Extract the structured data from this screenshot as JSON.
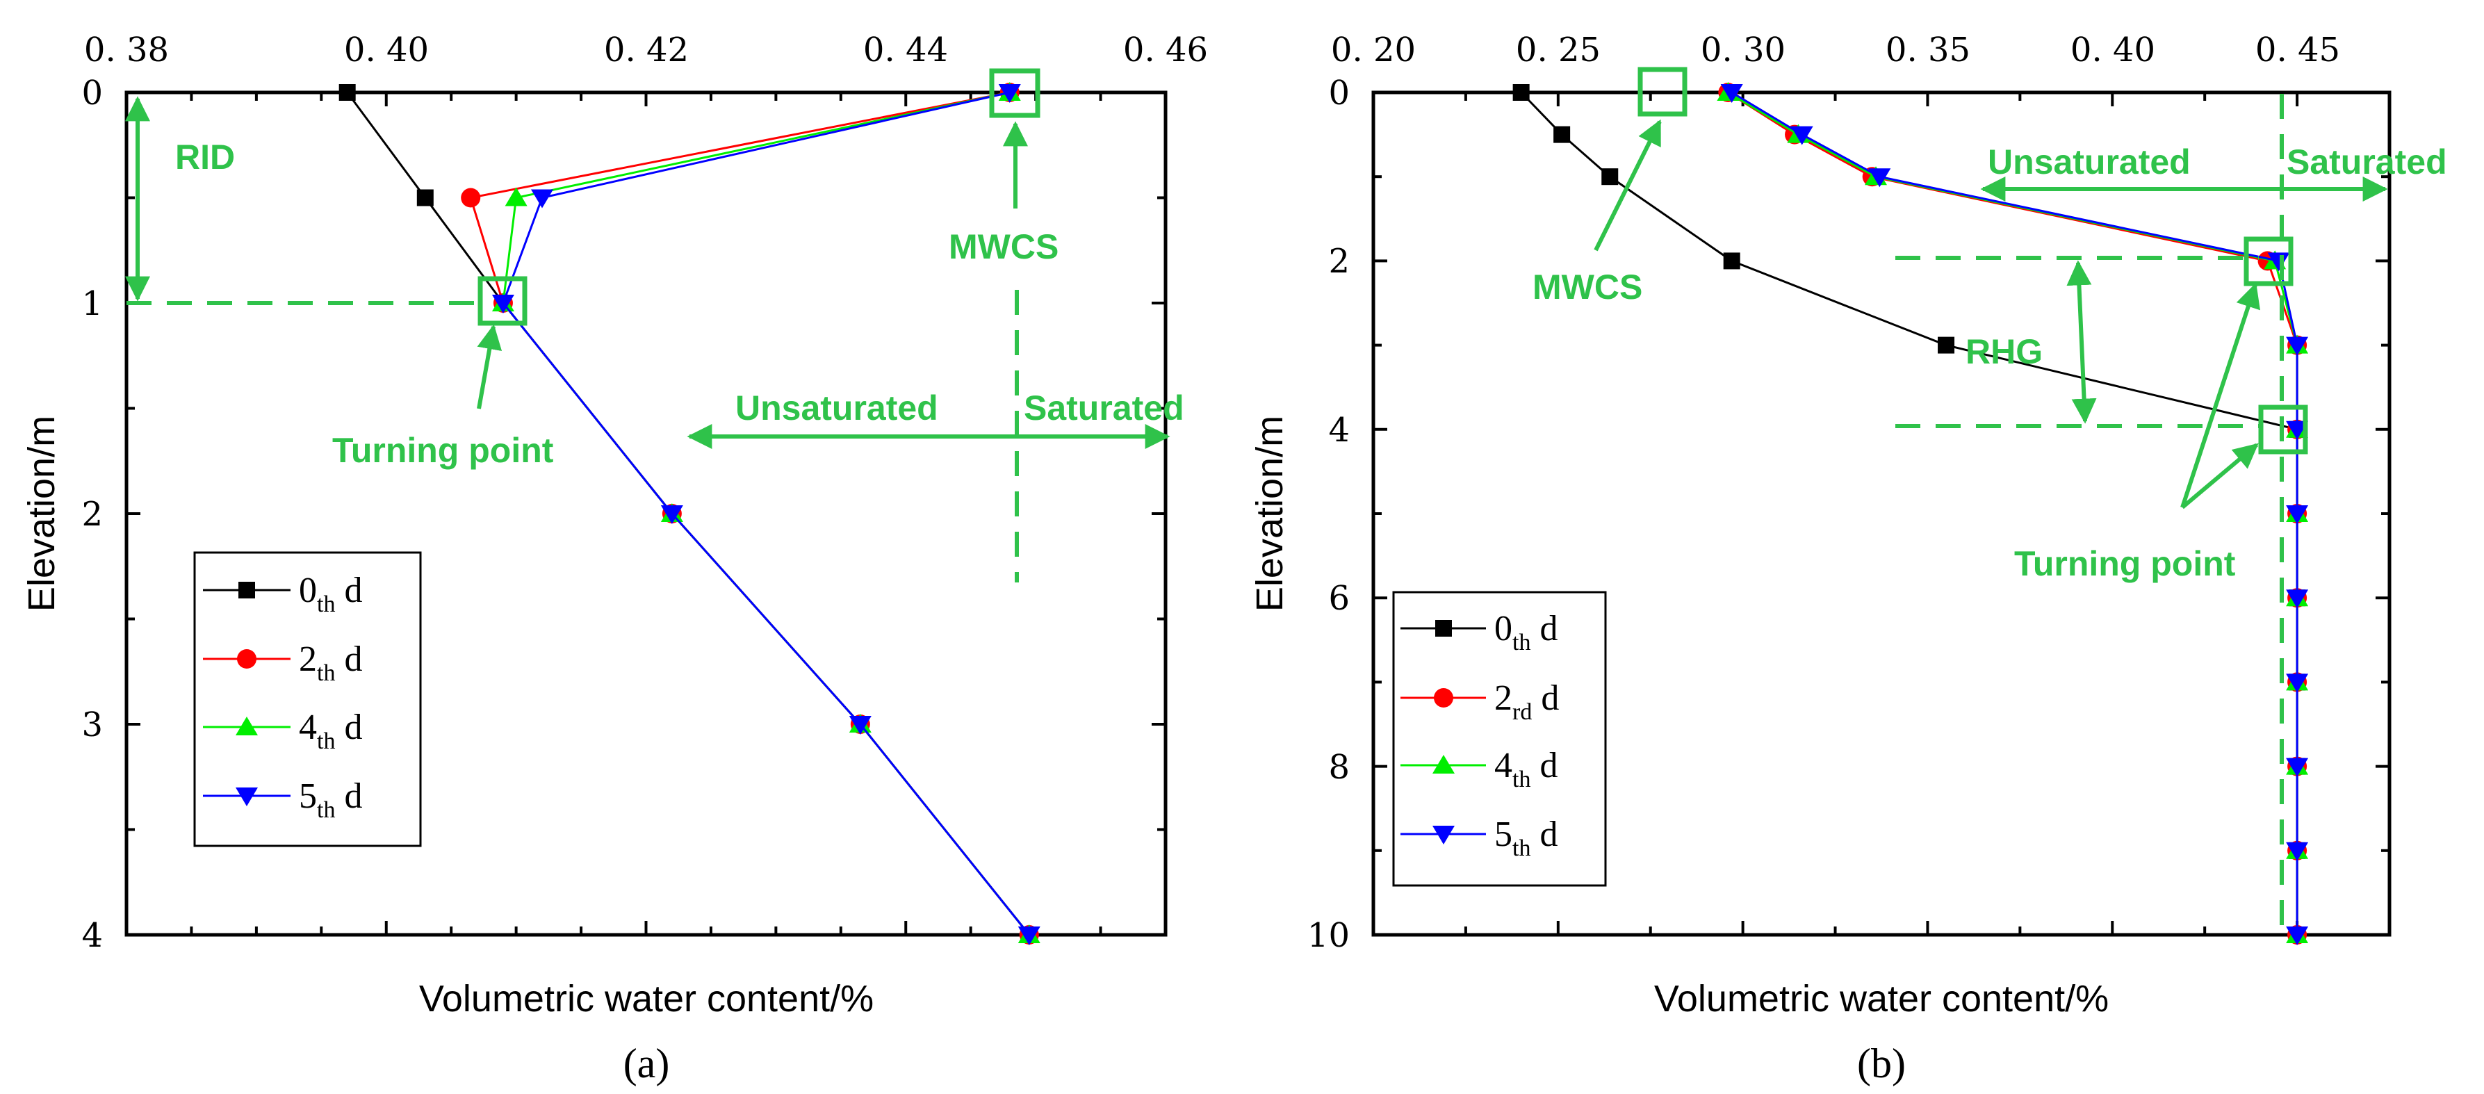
{
  "chart_data": [
    {
      "type": "line",
      "panel_label": "(a)",
      "xlabel": "Volumetric water content/%",
      "ylabel": "Elevation/m",
      "xlim": [
        0.38,
        0.46
      ],
      "ylim": [
        0,
        4
      ],
      "x_ticks": [
        "0. 38",
        "0. 40",
        "0. 42",
        "0. 44",
        "0. 46"
      ],
      "y_ticks": [
        "0",
        "1",
        "2",
        "3",
        "4"
      ],
      "series": [
        {
          "name": "0",
          "sub": "th",
          "unit": "d",
          "color": "#000000",
          "marker": "square",
          "x": [
            0.397,
            0.403,
            0.409,
            0.422,
            0.4365,
            0.4495
          ],
          "y": [
            0,
            0.5,
            1,
            2,
            3,
            4
          ]
        },
        {
          "name": "2",
          "sub": "th",
          "unit": "d",
          "color": "#ff0000",
          "marker": "circle",
          "x": [
            0.448,
            0.4065,
            0.409,
            0.422,
            0.4365,
            0.4495
          ],
          "y": [
            0,
            0.5,
            1,
            2,
            3,
            4
          ]
        },
        {
          "name": "4",
          "sub": "th",
          "unit": "d",
          "color": "#00ee00",
          "marker": "triangle-up",
          "x": [
            0.448,
            0.41,
            0.409,
            0.422,
            0.4365,
            0.4495
          ],
          "y": [
            0,
            0.5,
            1,
            2,
            3,
            4
          ]
        },
        {
          "name": "5",
          "sub": "th",
          "unit": "d",
          "color": "#0000ff",
          "marker": "triangle-down",
          "x": [
            0.448,
            0.412,
            0.409,
            0.422,
            0.4365,
            0.4495
          ],
          "y": [
            0,
            0.5,
            1,
            2,
            3,
            4
          ]
        }
      ],
      "annotations": [
        {
          "text": "RID"
        },
        {
          "text": "MWCS"
        },
        {
          "text": "Turning point"
        },
        {
          "text": "Unsaturated"
        },
        {
          "text": "Saturated"
        }
      ],
      "legend_position": "bottom-left"
    },
    {
      "type": "line",
      "panel_label": "(b)",
      "xlabel": "Volumetric water content/%",
      "ylabel": "Elevation/m",
      "xlim": [
        0.2,
        0.475
      ],
      "ylim": [
        0,
        10
      ],
      "x_ticks": [
        "0. 20",
        "0. 25",
        "0. 30",
        "0. 35",
        "0. 40",
        "0. 45"
      ],
      "y_ticks": [
        "0",
        "2",
        "4",
        "6",
        "8",
        "10"
      ],
      "series": [
        {
          "name": "0",
          "sub": "th",
          "unit": "d",
          "color": "#000000",
          "marker": "square",
          "x": [
            0.24,
            0.251,
            0.264,
            0.297,
            0.355,
            0.45,
            0.45,
            0.45,
            0.45,
            0.45,
            0.45,
            0.45
          ],
          "y": [
            0,
            0.5,
            1,
            2,
            3,
            4,
            5,
            6,
            7,
            8,
            9,
            10
          ]
        },
        {
          "name": "2",
          "sub": "rd",
          "unit": "d",
          "color": "#ff0000",
          "marker": "circle",
          "x": [
            0.296,
            0.314,
            0.335,
            0.442,
            0.45,
            0.45,
            0.45,
            0.45,
            0.45,
            0.45,
            0.45,
            0.45
          ],
          "y": [
            0,
            0.5,
            1,
            2,
            3,
            4,
            5,
            6,
            7,
            8,
            9,
            10
          ]
        },
        {
          "name": "4",
          "sub": "th",
          "unit": "d",
          "color": "#00ee00",
          "marker": "triangle-up",
          "x": [
            0.296,
            0.315,
            0.336,
            0.444,
            0.45,
            0.45,
            0.45,
            0.45,
            0.45,
            0.45,
            0.45,
            0.45
          ],
          "y": [
            0,
            0.5,
            1,
            2,
            3,
            4,
            5,
            6,
            7,
            8,
            9,
            10
          ]
        },
        {
          "name": "5",
          "sub": "th",
          "unit": "d",
          "color": "#0000ff",
          "marker": "triangle-down",
          "x": [
            0.297,
            0.316,
            0.337,
            0.445,
            0.45,
            0.45,
            0.45,
            0.45,
            0.45,
            0.45,
            0.45,
            0.45
          ],
          "y": [
            0,
            0.5,
            1,
            2,
            3,
            4,
            5,
            6,
            7,
            8,
            9,
            10
          ]
        }
      ],
      "annotations": [
        {
          "text": "MWCS"
        },
        {
          "text": "Unsaturated"
        },
        {
          "text": "Saturated"
        },
        {
          "text": "RHG"
        },
        {
          "text": "Turning point"
        }
      ],
      "legend_position": "bottom-left"
    }
  ],
  "colors": {
    "annotation": "#2fc24a",
    "axis": "#000000"
  }
}
